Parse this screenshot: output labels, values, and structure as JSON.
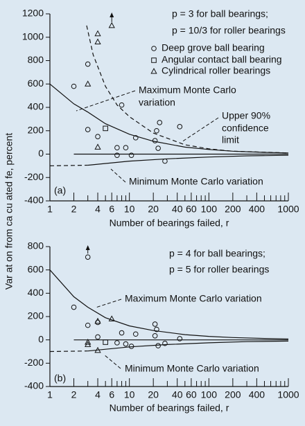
{
  "chart_data": [
    {
      "type": "scatter",
      "ylabel": "Var at on from ca cu ated  fe, percent",
      "xlabel": "Number of bearings failed, r",
      "log_x": true,
      "xlim": [
        1,
        1000
      ],
      "xticks": [
        1,
        2,
        4,
        6,
        10,
        20,
        40,
        60,
        100,
        200,
        400,
        1000
      ],
      "xminorticks": [
        3,
        5,
        7,
        8,
        9,
        30,
        50,
        70,
        80,
        90,
        300,
        500,
        600,
        700,
        800,
        900
      ],
      "ylim": [
        -400,
        1200
      ],
      "yticks": [
        -400,
        -200,
        0,
        200,
        400,
        600,
        800,
        1000,
        1200
      ],
      "color": "#111111",
      "annotations": [
        "p = 3 for ball bearings;",
        "p = 10/3 for roller bearings",
        "Maximum Monte Carlo",
        "variation",
        "Upper 90%",
        "confidence",
        "limit",
        "Minimum Monte Carlo variation",
        "(a)"
      ],
      "series": [
        {
          "name": "Deep grove ball bearing",
          "type": "scatter",
          "marker": "circle",
          "x": [
            2,
            3,
            3,
            4,
            8,
            7,
            9,
            10.6,
            12,
            7,
            21,
            22,
            24,
            23,
            28,
            43
          ],
          "values": [
            580,
            770,
            210,
            150,
            420,
            55,
            55,
            -10,
            140,
            -10,
            115,
            200,
            270,
            50,
            -60,
            235
          ]
        },
        {
          "name": "Angular contact ball bearing",
          "type": "scatter",
          "marker": "square",
          "x": [
            5
          ],
          "values": [
            220
          ]
        },
        {
          "name": "Cylindrical roller bearings",
          "type": "scatter",
          "marker": "triangle",
          "x": [
            3,
            4,
            4,
            4,
            6
          ],
          "values": [
            600,
            1030,
            960,
            60,
            1100
          ]
        },
        {
          "type": "line",
          "dashed": false,
          "x": [
            1,
            2,
            3,
            5,
            10,
            20,
            50,
            100,
            200,
            500,
            1000
          ],
          "values": [
            600,
            430,
            360,
            260,
            170,
            110,
            60,
            40,
            25,
            15,
            10
          ]
        },
        {
          "type": "line",
          "dashed": true,
          "x": [
            2.9,
            3.5,
            5,
            7,
            10,
            20,
            50,
            100,
            200,
            1000
          ],
          "values": [
            1100,
            850,
            580,
            420,
            320,
            180,
            80,
            45,
            25,
            10
          ]
        },
        {
          "type": "line",
          "dashed": false,
          "x": [
            2,
            1000
          ],
          "values": [
            0,
            0
          ]
        },
        {
          "type": "line",
          "dashed": true,
          "x": [
            1,
            3
          ],
          "values": [
            -100,
            -95
          ]
        },
        {
          "type": "line",
          "dashed": false,
          "x": [
            3,
            10,
            30,
            100,
            300,
            1000
          ],
          "values": [
            -95,
            -60,
            -40,
            -25,
            -15,
            -10
          ]
        }
      ]
    },
    {
      "type": "scatter",
      "xlabel": "Number of bearings failed, r",
      "log_x": true,
      "xlim": [
        1,
        1000
      ],
      "xticks": [
        1,
        2,
        4,
        6,
        10,
        20,
        40,
        60,
        100,
        200,
        400,
        1000
      ],
      "xminorticks": [
        3,
        5,
        7,
        8,
        9,
        30,
        50,
        70,
        80,
        90,
        300,
        500,
        600,
        700,
        800,
        900
      ],
      "ylim": [
        -400,
        800
      ],
      "yticks": [
        -400,
        -200,
        0,
        200,
        400,
        600,
        800
      ],
      "color": "#111111",
      "annotations": [
        "p = 4 for ball bearings;",
        "p = 5 for roller bearings",
        "Maximum Monte Carlo variation",
        "Minimum Monte Carlo variation",
        "(b)"
      ],
      "series": [
        {
          "type": "scatter",
          "marker": "circle",
          "x": [
            2,
            3,
            3,
            4,
            4,
            7,
            8,
            9,
            10.6,
            12,
            21,
            22,
            21,
            23,
            28,
            43
          ],
          "values": [
            280,
            710,
            125,
            150,
            25,
            -25,
            60,
            -35,
            -55,
            50,
            135,
            90,
            35,
            -50,
            -30,
            10
          ]
        },
        {
          "type": "scatter",
          "marker": "square",
          "x": [
            5
          ],
          "values": [
            -20
          ]
        },
        {
          "type": "scatter",
          "marker": "triangle",
          "x": [
            3,
            3,
            4,
            6,
            4
          ],
          "values": [
            -20,
            -40,
            160,
            180,
            -90
          ]
        },
        {
          "type": "line",
          "dashed": false,
          "x": [
            1,
            2,
            3,
            5,
            10,
            20,
            50,
            100,
            200,
            500,
            1000
          ],
          "values": [
            600,
            370,
            280,
            190,
            120,
            80,
            45,
            30,
            20,
            12,
            8
          ]
        },
        {
          "type": "line",
          "dashed": false,
          "x": [
            2,
            1000
          ],
          "values": [
            0,
            0
          ]
        },
        {
          "type": "line",
          "dashed": true,
          "x": [
            1,
            3
          ],
          "values": [
            -100,
            -95
          ]
        },
        {
          "type": "line",
          "dashed": false,
          "x": [
            3,
            10,
            30,
            100,
            300,
            1000
          ],
          "values": [
            -95,
            -60,
            -40,
            -25,
            -15,
            -10
          ]
        }
      ]
    }
  ]
}
